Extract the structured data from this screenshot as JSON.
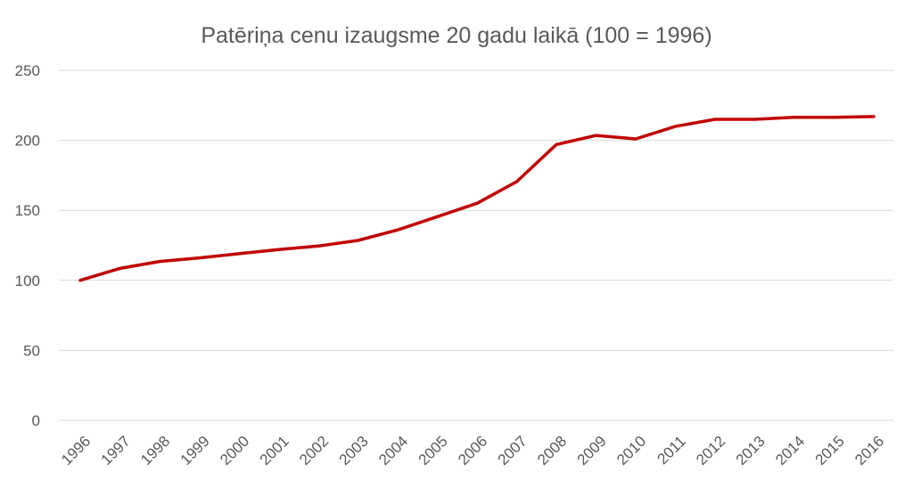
{
  "chart_data": {
    "type": "line",
    "title": "Patēriņa cenu izaugsme 20 gadu laikā (100 = 1996)",
    "xlabel": "",
    "ylabel": "",
    "x": [
      "1996",
      "1997",
      "1998",
      "1999",
      "2000",
      "2001",
      "2002",
      "2003",
      "2004",
      "2005",
      "2006",
      "2007",
      "2008",
      "2009",
      "2010",
      "2011",
      "2012",
      "2013",
      "2014",
      "2015",
      "2016"
    ],
    "series": [
      {
        "name": "",
        "color": "#c00000",
        "values": [
          100,
          108.5,
          113.5,
          116,
          119,
          122,
          124.5,
          128.5,
          136,
          145.5,
          155,
          170.5,
          197,
          203.5,
          201,
          210,
          215,
          215,
          216.5,
          216.5,
          217
        ]
      }
    ],
    "ylim": [
      0,
      250
    ],
    "yticks": [
      0,
      50,
      100,
      150,
      200,
      250
    ],
    "grid": true,
    "legend": "none"
  }
}
